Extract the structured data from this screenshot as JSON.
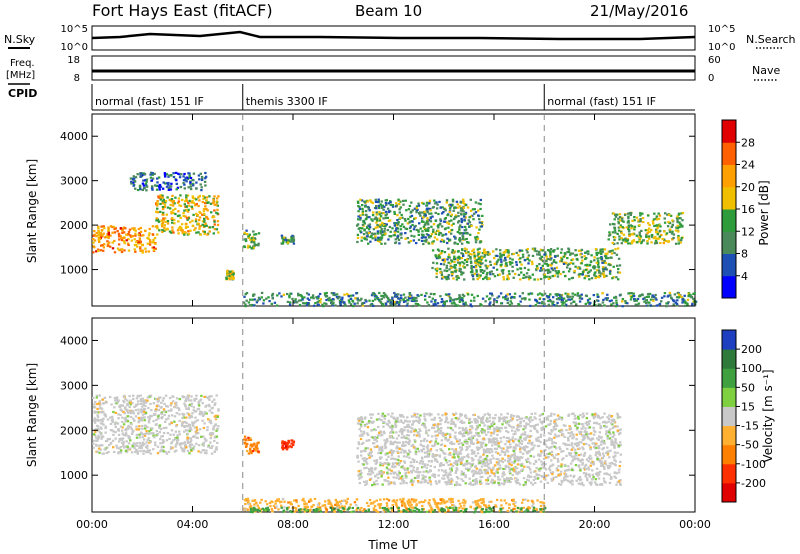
{
  "header": {
    "station": "Fort Hays East (fitACF)",
    "beam": "Beam 10",
    "date": "21/May/2016"
  },
  "summary_panels": {
    "nsky": {
      "label": "N.Sky",
      "ticks": [
        "10^5",
        "10^0"
      ],
      "right_label": "N.Search",
      "right_ticks": [
        "10^5",
        "10^0"
      ]
    },
    "freq": {
      "label_line1": "Freq.",
      "label_line2": "[MHz]",
      "ticks": [
        "18",
        "8"
      ],
      "right_label": "Nave",
      "right_ticks": [
        "60",
        "0"
      ]
    },
    "cpid": {
      "label": "CPID",
      "segments": [
        {
          "text": "normal (fast) 151 IF",
          "start_hour": 0
        },
        {
          "text": "themis 3300 IF",
          "start_hour": 6
        },
        {
          "text": "normal (fast) 151 IF",
          "start_hour": 18
        }
      ]
    }
  },
  "chart_data": [
    {
      "type": "heatmap",
      "name": "power",
      "ylabel": "Slant Range [km]",
      "xlabel": "",
      "xlim": [
        0,
        24
      ],
      "ylim": [
        180,
        4500
      ],
      "yticks": [
        "1000",
        "2000",
        "3000",
        "4000"
      ],
      "colorbar": {
        "label": "Power [dB]",
        "ticks": [
          "4",
          "8",
          "12",
          "16",
          "20",
          "24",
          "28"
        ],
        "colors": [
          "#0000ff",
          "#1e4fb4",
          "#4a8a5a",
          "#2e9c3a",
          "#f0c000",
          "#ffa000",
          "#ff6000",
          "#e00000"
        ],
        "range": [
          0,
          32
        ]
      },
      "regions": [
        {
          "x": [
            0.0,
            2.5
          ],
          "y": [
            1400,
            2000
          ],
          "level": 0.75
        },
        {
          "x": [
            2.5,
            5.0
          ],
          "y": [
            1800,
            2700
          ],
          "level": 0.6
        },
        {
          "x": [
            1.5,
            4.5
          ],
          "y": [
            2800,
            3200
          ],
          "level": 0.2
        },
        {
          "x": [
            5.3,
            5.6
          ],
          "y": [
            800,
            1000
          ],
          "level": 0.55
        },
        {
          "x": [
            6.0,
            6.6
          ],
          "y": [
            1500,
            1900
          ],
          "level": 0.4
        },
        {
          "x": [
            7.5,
            8.0
          ],
          "y": [
            1600,
            1800
          ],
          "level": 0.35
        },
        {
          "x": [
            10.5,
            15.5
          ],
          "y": [
            1600,
            2600
          ],
          "level": 0.35
        },
        {
          "x": [
            13.5,
            21.0
          ],
          "y": [
            800,
            1500
          ],
          "level": 0.4
        },
        {
          "x": [
            20.5,
            23.5
          ],
          "y": [
            1600,
            2300
          ],
          "level": 0.45
        },
        {
          "x": [
            6.0,
            24.0
          ],
          "y": [
            200,
            500
          ],
          "level": 0.3
        }
      ]
    },
    {
      "type": "heatmap",
      "name": "velocity",
      "ylabel": "Slant Range [km]",
      "xlabel": "Time UT",
      "xlim": [
        0,
        24
      ],
      "ylim": [
        180,
        4500
      ],
      "xticks": [
        "00:00",
        "04:00",
        "08:00",
        "12:00",
        "16:00",
        "20:00",
        "00:00"
      ],
      "yticks": [
        "1000",
        "2000",
        "3000",
        "4000"
      ],
      "colorbar": {
        "label": "Velocity [m s⁻¹]",
        "ticks": [
          "200",
          "100",
          "50",
          "15",
          "-15",
          "-50",
          "-100",
          "-200"
        ],
        "colors": [
          "#1e40c0",
          "#2e7a3a",
          "#3fa040",
          "#7ed040",
          "#c8c8c8",
          "#ffb030",
          "#ff8000",
          "#ff3000",
          "#e00000"
        ]
      },
      "regions": [
        {
          "x": [
            0.0,
            5.0
          ],
          "y": [
            1500,
            2800
          ],
          "value": 0
        },
        {
          "x": [
            6.0,
            6.6
          ],
          "y": [
            1500,
            1900
          ],
          "value": -80
        },
        {
          "x": [
            7.5,
            8.0
          ],
          "y": [
            1600,
            1800
          ],
          "value": -150
        },
        {
          "x": [
            10.5,
            21.0
          ],
          "y": [
            800,
            2400
          ],
          "value": 0
        },
        {
          "x": [
            6.0,
            18.0
          ],
          "y": [
            200,
            500
          ],
          "value": -30
        },
        {
          "x": [
            6.0,
            18.0
          ],
          "y": [
            200,
            300
          ],
          "value": 30
        }
      ]
    }
  ]
}
